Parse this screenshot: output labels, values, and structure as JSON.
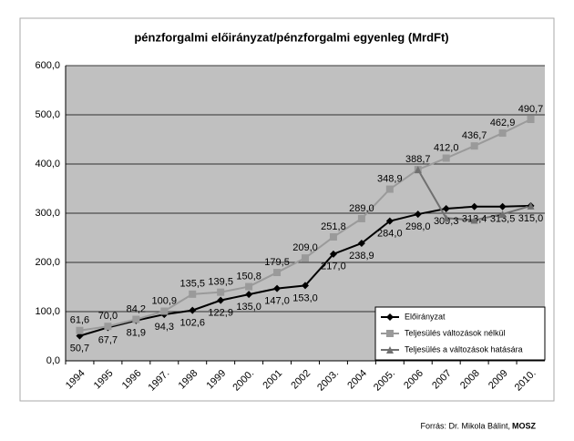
{
  "chart_data": {
    "type": "line",
    "title": "pénzforgalmi előirányzat/pénzforgalmi egyenleg (MrdFt)",
    "categories": [
      "1994",
      "1995",
      "1996",
      "1997.",
      "1998",
      "1999",
      "2000.",
      "2001",
      "2002",
      "2003.",
      "2004",
      "2005.",
      "2006",
      "2007",
      "2008",
      "2009",
      "2010."
    ],
    "series": [
      {
        "name": "Előirányzat",
        "color": "#000000",
        "marker": "diamond",
        "values": [
          50.7,
          67.7,
          81.9,
          94.3,
          102.6,
          122.9,
          135.0,
          147.0,
          153.0,
          217.0,
          238.9,
          284.0,
          298.0,
          309.3,
          313.4,
          313.5,
          315.0
        ],
        "value_labels": [
          "50,7",
          "67,7",
          "81,9",
          "94,3",
          "102,6",
          "122,9",
          "135,0",
          "147,0",
          "153,0",
          "217,0",
          "238,9",
          "284,0",
          "298,0",
          "309,3",
          "313,4",
          "313,5",
          "315,0"
        ]
      },
      {
        "name": "Teljesülés változások nélkül",
        "color": "#9a9a9a",
        "marker": "square",
        "values": [
          61.6,
          70.0,
          84.2,
          100.9,
          135.5,
          139.5,
          150.8,
          179.5,
          209.0,
          251.8,
          289.0,
          348.9,
          388.7,
          412.0,
          436.7,
          462.9,
          490.7
        ],
        "value_labels": [
          "61,6",
          "70,0",
          "84,2",
          "100,9",
          "135,5",
          "139,5",
          "150,8",
          "179,5",
          "209,0",
          "251,8",
          "289,0",
          "348,9",
          "388,7",
          "412,0",
          "436,7",
          "462,9",
          "490,7"
        ]
      },
      {
        "name": "Teljesülés a változások hatására",
        "color": "#707070",
        "marker": "triangle",
        "values": [
          null,
          null,
          null,
          null,
          null,
          null,
          null,
          null,
          null,
          null,
          null,
          null,
          388.7,
          290,
          286,
          298,
          315
        ]
      }
    ],
    "ylim": [
      0,
      600
    ],
    "yticks": [
      {
        "value": 0,
        "label": "0,0"
      },
      {
        "value": 100,
        "label": "100,0"
      },
      {
        "value": 200,
        "label": "200,0"
      },
      {
        "value": 300,
        "label": "300,0"
      },
      {
        "value": 400,
        "label": "400,0"
      },
      {
        "value": 500,
        "label": "500,0"
      },
      {
        "value": 600,
        "label": "600,0"
      }
    ],
    "grid": true,
    "legend": "lower right",
    "source": "Forrás: Dr. Mikola Bálint,",
    "source_bold": "MOSZ"
  }
}
